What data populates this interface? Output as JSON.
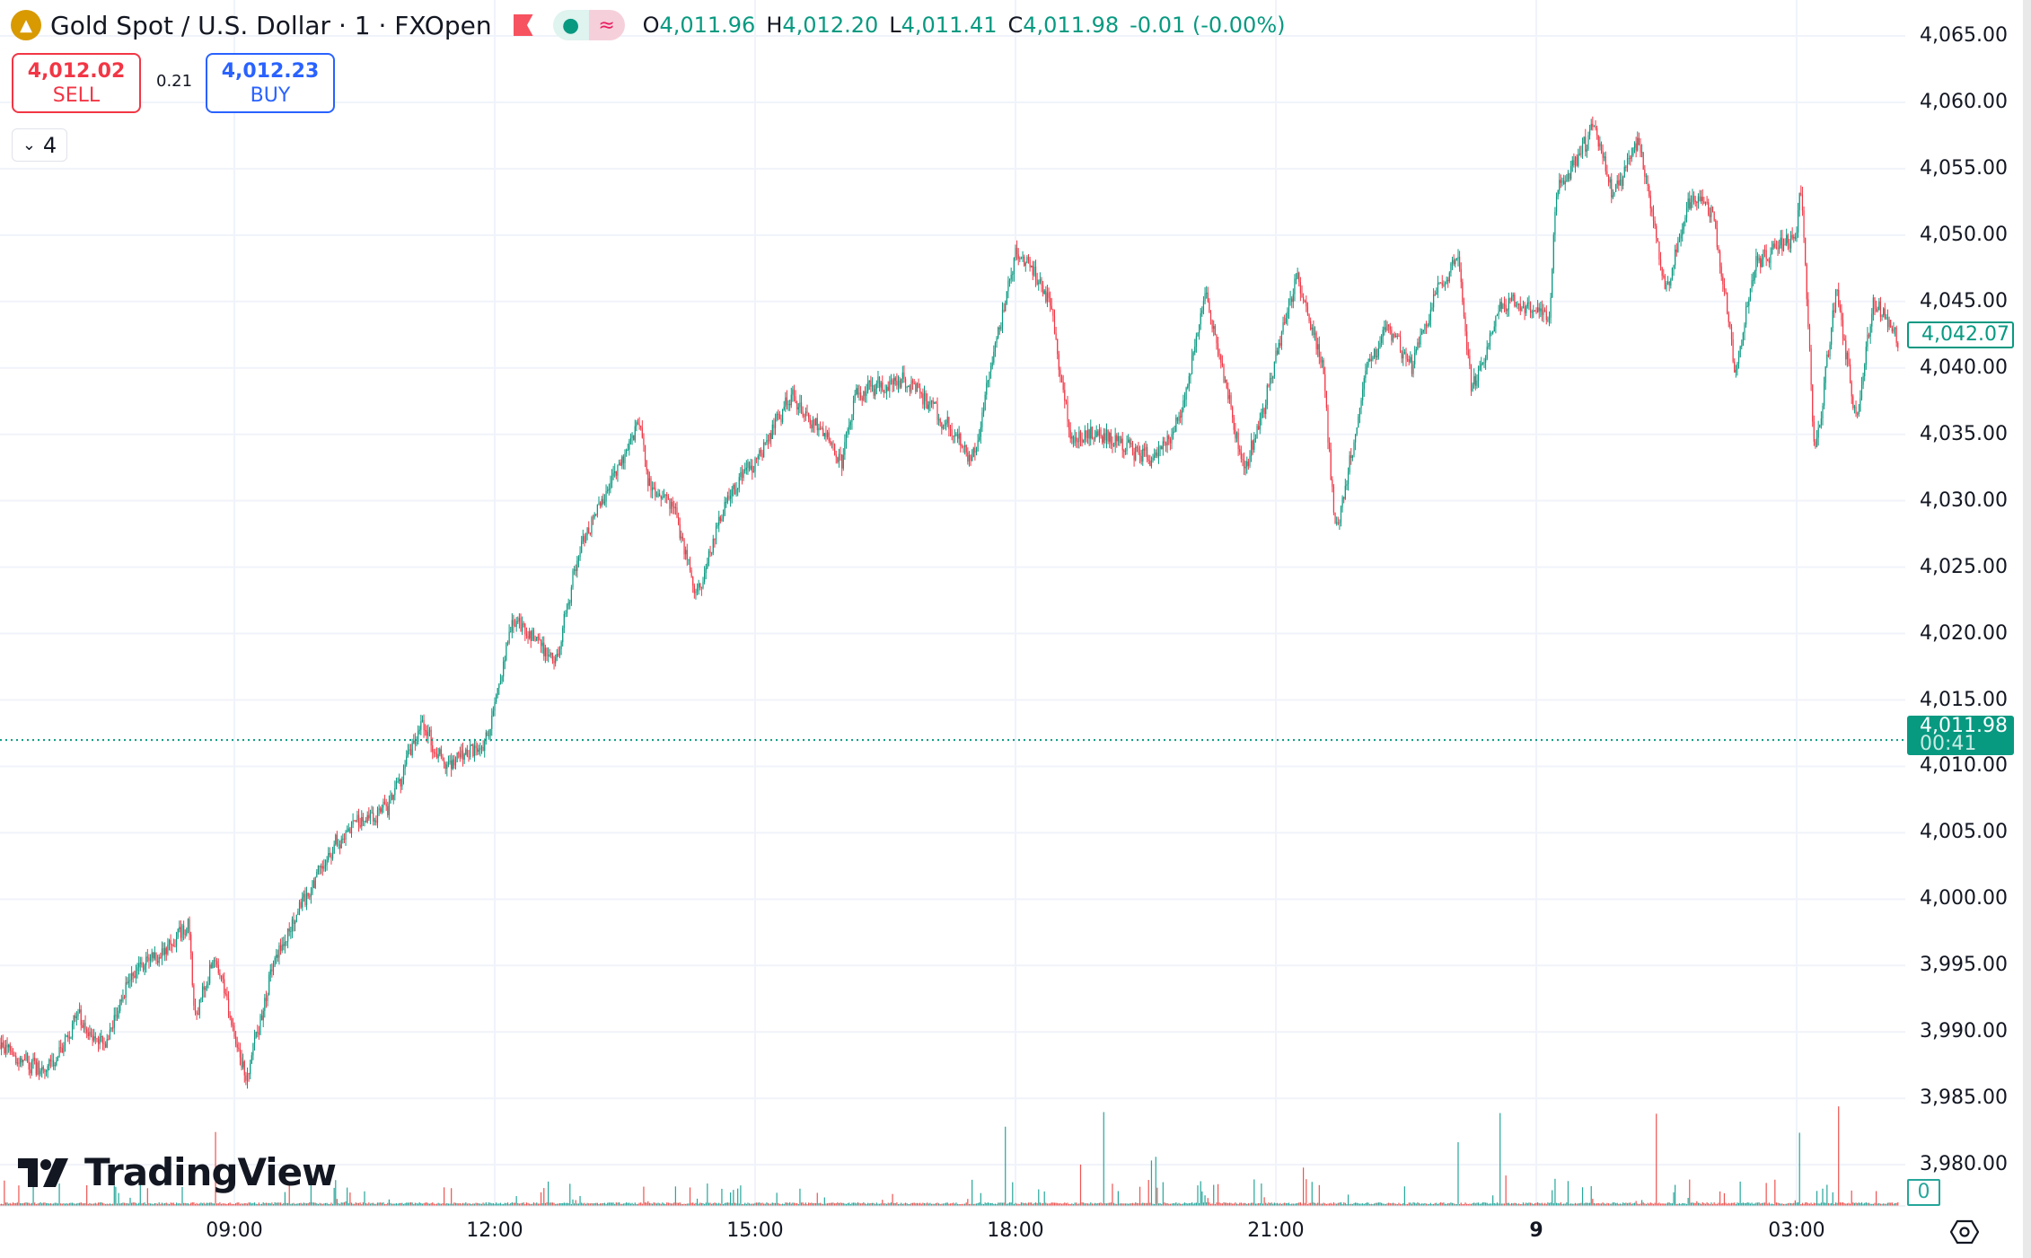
{
  "header": {
    "symbol_title": "Gold Spot / U.S. Dollar · 1 · FXOpen",
    "ohlc": {
      "o_label": "O",
      "o": "4,011.96",
      "h_label": "H",
      "h": "4,012.20",
      "l_label": "L",
      "l": "4,011.41",
      "c_label": "C",
      "c": "4,011.98",
      "change": "-0.01 (-0.00%)"
    }
  },
  "trade": {
    "sell_price": "4,012.02",
    "sell_label": "SELL",
    "spread": "0.21",
    "buy_price": "4,012.23",
    "buy_label": "BUY"
  },
  "indicators_toggle": {
    "count": "4"
  },
  "price_axis": {
    "current_price": "4,011.98",
    "countdown": "00:41",
    "marker_price": "4,042.07",
    "volume_value": "0"
  },
  "branding": {
    "logo_text": "TradingView"
  },
  "colors": {
    "up": "#089981",
    "down": "#f23645",
    "grid": "#f0f3fa",
    "current_line": "#089981"
  },
  "chart_data": {
    "type": "candlestick",
    "title": "Gold Spot / U.S. Dollar · 1 · FXOpen",
    "interval_minutes": 1,
    "ylim": [
      3977,
      4066
    ],
    "y_ticks": [
      "4,065.00",
      "4,060.00",
      "4,055.00",
      "4,050.00",
      "4,045.00",
      "4,040.00",
      "4,035.00",
      "4,030.00",
      "4,025.00",
      "4,020.00",
      "4,015.00",
      "4,010.00",
      "4,005.00",
      "4,000.00",
      "3,995.00",
      "3,990.00",
      "3,985.00",
      "3,980.00"
    ],
    "y_tick_values": [
      4065,
      4060,
      4055,
      4050,
      4045,
      4040,
      4035,
      4030,
      4025,
      4020,
      4015,
      4010,
      4005,
      4000,
      3995,
      3990,
      3985,
      3980
    ],
    "x_ticks": [
      "09:00",
      "12:00",
      "15:00",
      "18:00",
      "21:00",
      "9",
      "03:00"
    ],
    "x_tick_minutes_from_0900": [
      0,
      180,
      360,
      540,
      720,
      900,
      1080
    ],
    "current_price": 4011.98,
    "price_path_minutes_from_0900": [
      [
        -162,
        3989
      ],
      [
        -131,
        3987
      ],
      [
        -108,
        3991
      ],
      [
        -90,
        3989
      ],
      [
        -73,
        3994
      ],
      [
        -32,
        3998
      ],
      [
        -28,
        3991
      ],
      [
        -14,
        3996
      ],
      [
        8,
        3986
      ],
      [
        26,
        3995
      ],
      [
        53,
        4001
      ],
      [
        75,
        4005
      ],
      [
        107,
        4007
      ],
      [
        129,
        4013
      ],
      [
        147,
        4010
      ],
      [
        174,
        4012
      ],
      [
        192,
        4021
      ],
      [
        223,
        4018
      ],
      [
        237,
        4026
      ],
      [
        259,
        4031
      ],
      [
        279,
        4036
      ],
      [
        286,
        4031
      ],
      [
        304,
        4029
      ],
      [
        320,
        4023
      ],
      [
        340,
        4030
      ],
      [
        371,
        4035
      ],
      [
        384,
        4038
      ],
      [
        420,
        4033
      ],
      [
        429,
        4038
      ],
      [
        465,
        4039
      ],
      [
        483,
        4037
      ],
      [
        510,
        4033
      ],
      [
        528,
        4043
      ],
      [
        541,
        4049
      ],
      [
        564,
        4045
      ],
      [
        577,
        4035
      ],
      [
        604,
        4035
      ],
      [
        635,
        4033
      ],
      [
        653,
        4036
      ],
      [
        671,
        4046
      ],
      [
        698,
        4032
      ],
      [
        711,
        4037
      ],
      [
        734,
        4047
      ],
      [
        752,
        4040
      ],
      [
        761,
        4027
      ],
      [
        783,
        4040
      ],
      [
        797,
        4043
      ],
      [
        814,
        4040
      ],
      [
        832,
        4046
      ],
      [
        846,
        4048
      ],
      [
        855,
        4038
      ],
      [
        877,
        4045
      ],
      [
        909,
        4044
      ],
      [
        913,
        4053
      ],
      [
        940,
        4058
      ],
      [
        953,
        4053
      ],
      [
        971,
        4057
      ],
      [
        989,
        4046
      ],
      [
        1007,
        4053
      ],
      [
        1021,
        4052
      ],
      [
        1037,
        4040
      ],
      [
        1052,
        4048
      ],
      [
        1079,
        4050
      ],
      [
        1083,
        4054
      ],
      [
        1092,
        4033
      ],
      [
        1107,
        4046
      ],
      [
        1121,
        4036
      ],
      [
        1133,
        4045
      ],
      [
        1150,
        4042
      ]
    ]
  }
}
